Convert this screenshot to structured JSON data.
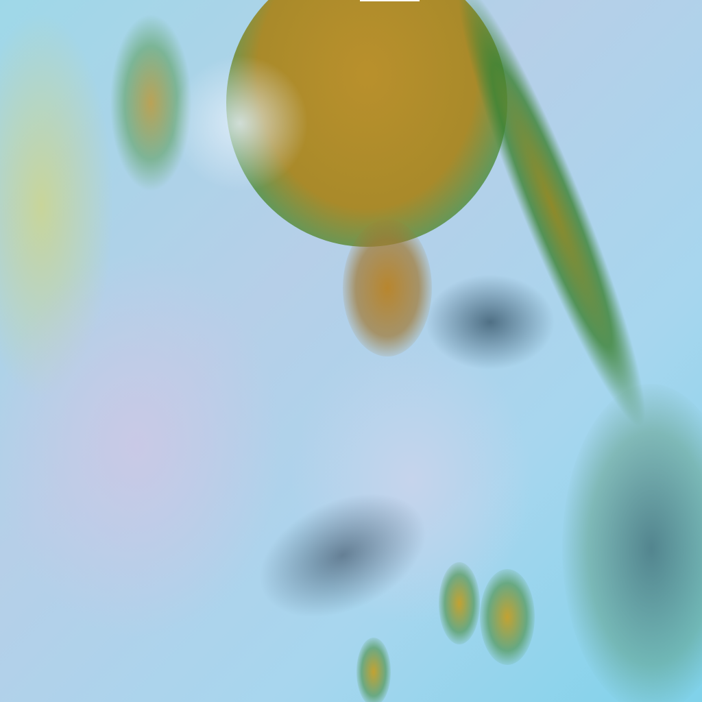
{
  "image": {
    "type": "satellite false-color composite",
    "colors": {
      "cloud_top_warm": "#b08a2a",
      "cloud_edge": "#3f8f3a",
      "clear": "#8fd6ea",
      "low_cloud": "#c8cbe8"
    }
  }
}
